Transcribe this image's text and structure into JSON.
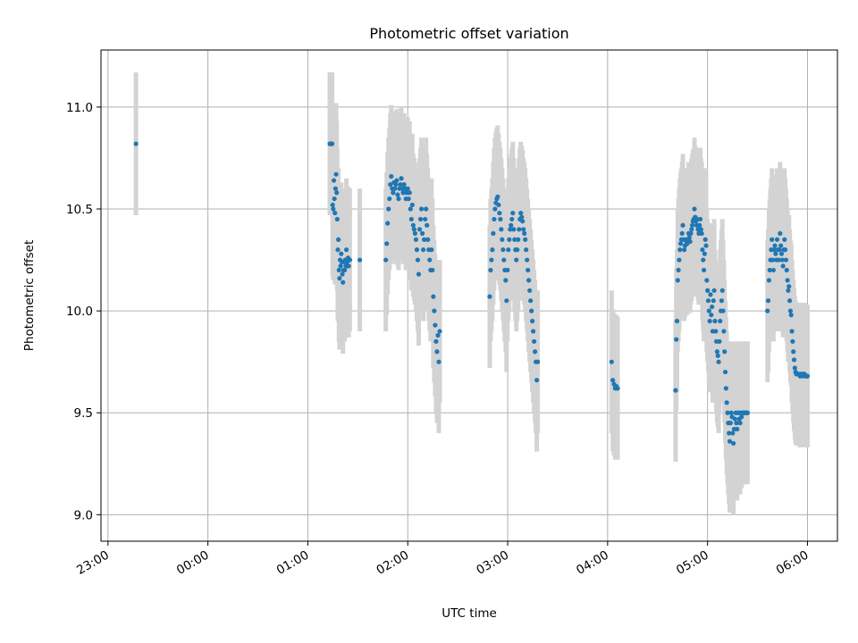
{
  "chart_data": {
    "type": "scatter",
    "title": "Photometric offset variation",
    "xlabel": "UTC time",
    "ylabel": "Photometric offset",
    "x_ticks": [
      "23:00",
      "00:00",
      "01:00",
      "02:00",
      "03:00",
      "04:00",
      "05:00",
      "06:00"
    ],
    "y_ticks": [
      "9.0",
      "9.5",
      "10.0",
      "10.5",
      "11.0"
    ],
    "grid": true,
    "colors": {
      "point": "#1f77b4",
      "errorbar": "#d3d3d3",
      "grid": "#b0b0b0"
    },
    "x_unit": "hours after 23:00 UTC",
    "xlim": [
      -0.07,
      7.3
    ],
    "ylim": [
      8.87,
      11.28
    ],
    "error_halfwidth": 0.35,
    "segments": [
      {
        "x_start": 0.28,
        "x_end": 0.28,
        "n": 1,
        "y": [
          10.82
        ]
      },
      {
        "x_start": 2.22,
        "x_end": 2.42,
        "n": 36,
        "y": [
          10.82,
          10.82,
          10.82,
          10.82,
          10.82,
          10.52,
          10.5,
          10.64,
          10.55,
          10.48,
          10.6,
          10.67,
          10.58,
          10.45,
          10.3,
          10.35,
          10.2,
          10.16,
          10.25,
          10.22,
          10.28,
          10.24,
          10.18,
          10.14,
          10.2,
          10.24,
          10.2,
          10.25,
          10.22,
          10.3,
          10.24,
          10.22,
          10.26,
          10.22,
          10.25,
          10.25
        ]
      },
      {
        "x_start": 2.52,
        "x_end": 2.52,
        "n": 1,
        "y": [
          10.25
        ]
      },
      {
        "x_start": 2.78,
        "x_end": 3.32,
        "n": 60,
        "y": [
          10.25,
          10.33,
          10.43,
          10.5,
          10.55,
          10.62,
          10.66,
          10.6,
          10.58,
          10.63,
          10.6,
          10.62,
          10.64,
          10.57,
          10.55,
          10.6,
          10.62,
          10.65,
          10.6,
          10.58,
          10.62,
          10.6,
          10.55,
          10.58,
          10.6,
          10.55,
          10.58,
          10.5,
          10.45,
          10.52,
          10.42,
          10.4,
          10.38,
          10.35,
          10.3,
          10.25,
          10.18,
          10.4,
          10.45,
          10.5,
          10.38,
          10.3,
          10.35,
          10.45,
          10.5,
          10.42,
          10.35,
          10.3,
          10.25,
          10.2,
          10.3,
          10.2,
          10.07,
          10.0,
          9.93,
          9.85,
          9.8,
          9.88,
          9.75,
          9.9
        ]
      },
      {
        "x_start": 3.82,
        "x_end": 4.3,
        "n": 55,
        "y": [
          10.07,
          10.2,
          10.25,
          10.3,
          10.38,
          10.45,
          10.5,
          10.53,
          10.55,
          10.56,
          10.52,
          10.48,
          10.45,
          10.4,
          10.35,
          10.3,
          10.25,
          10.2,
          10.15,
          10.05,
          10.2,
          10.3,
          10.35,
          10.4,
          10.42,
          10.45,
          10.48,
          10.4,
          10.35,
          10.3,
          10.25,
          10.3,
          10.35,
          10.4,
          10.45,
          10.48,
          10.46,
          10.44,
          10.4,
          10.38,
          10.35,
          10.3,
          10.25,
          10.2,
          10.15,
          10.1,
          10.05,
          10.0,
          9.95,
          9.9,
          9.85,
          9.8,
          9.75,
          9.66,
          9.75
        ]
      },
      {
        "x_start": 5.04,
        "x_end": 5.1,
        "n": 6,
        "y": [
          9.75,
          9.66,
          9.64,
          9.62,
          9.63,
          9.62
        ]
      },
      {
        "x_start": 5.68,
        "x_end": 6.0,
        "n": 45,
        "y": [
          9.61,
          9.86,
          9.95,
          10.15,
          10.2,
          10.25,
          10.3,
          10.33,
          10.35,
          10.38,
          10.42,
          10.35,
          10.3,
          10.32,
          10.35,
          10.34,
          10.33,
          10.35,
          10.38,
          10.36,
          10.34,
          10.38,
          10.4,
          10.42,
          10.44,
          10.45,
          10.5,
          10.46,
          10.44,
          10.42,
          10.45,
          10.4,
          10.38,
          10.42,
          10.45,
          10.4,
          10.38,
          10.3,
          10.25,
          10.2,
          10.28,
          10.35,
          10.32,
          10.15,
          10.1
        ]
      },
      {
        "x_start": 6.0,
        "x_end": 6.4,
        "n": 55,
        "y": [
          10.1,
          10.05,
          10.0,
          9.95,
          10.08,
          9.98,
          10.02,
          9.9,
          10.05,
          10.1,
          9.95,
          9.9,
          9.85,
          9.8,
          9.78,
          9.75,
          9.85,
          9.95,
          10.0,
          10.05,
          10.1,
          10.0,
          9.9,
          9.8,
          9.7,
          9.62,
          9.55,
          9.5,
          9.45,
          9.4,
          9.36,
          9.45,
          9.5,
          9.48,
          9.4,
          9.35,
          9.42,
          9.47,
          9.5,
          9.45,
          9.42,
          9.5,
          9.5,
          9.47,
          9.45,
          9.5,
          9.48,
          9.5,
          9.5,
          9.5,
          9.5,
          9.5,
          9.5,
          9.5,
          9.5
        ]
      },
      {
        "x_start": 6.6,
        "x_end": 7.0,
        "n": 55,
        "y": [
          10.0,
          10.05,
          10.15,
          10.2,
          10.25,
          10.3,
          10.35,
          10.25,
          10.2,
          10.3,
          10.32,
          10.28,
          10.25,
          10.35,
          10.3,
          10.25,
          10.3,
          10.38,
          10.32,
          10.28,
          10.25,
          10.22,
          10.3,
          10.35,
          10.3,
          10.25,
          10.2,
          10.15,
          10.1,
          10.12,
          10.05,
          10.0,
          9.98,
          9.9,
          9.85,
          9.8,
          9.76,
          9.72,
          9.7,
          9.69,
          9.69,
          9.69,
          9.69,
          9.69,
          9.68,
          9.69,
          9.69,
          9.68,
          9.69,
          9.69,
          9.69,
          9.68,
          9.68,
          9.68,
          9.68
        ]
      }
    ]
  }
}
